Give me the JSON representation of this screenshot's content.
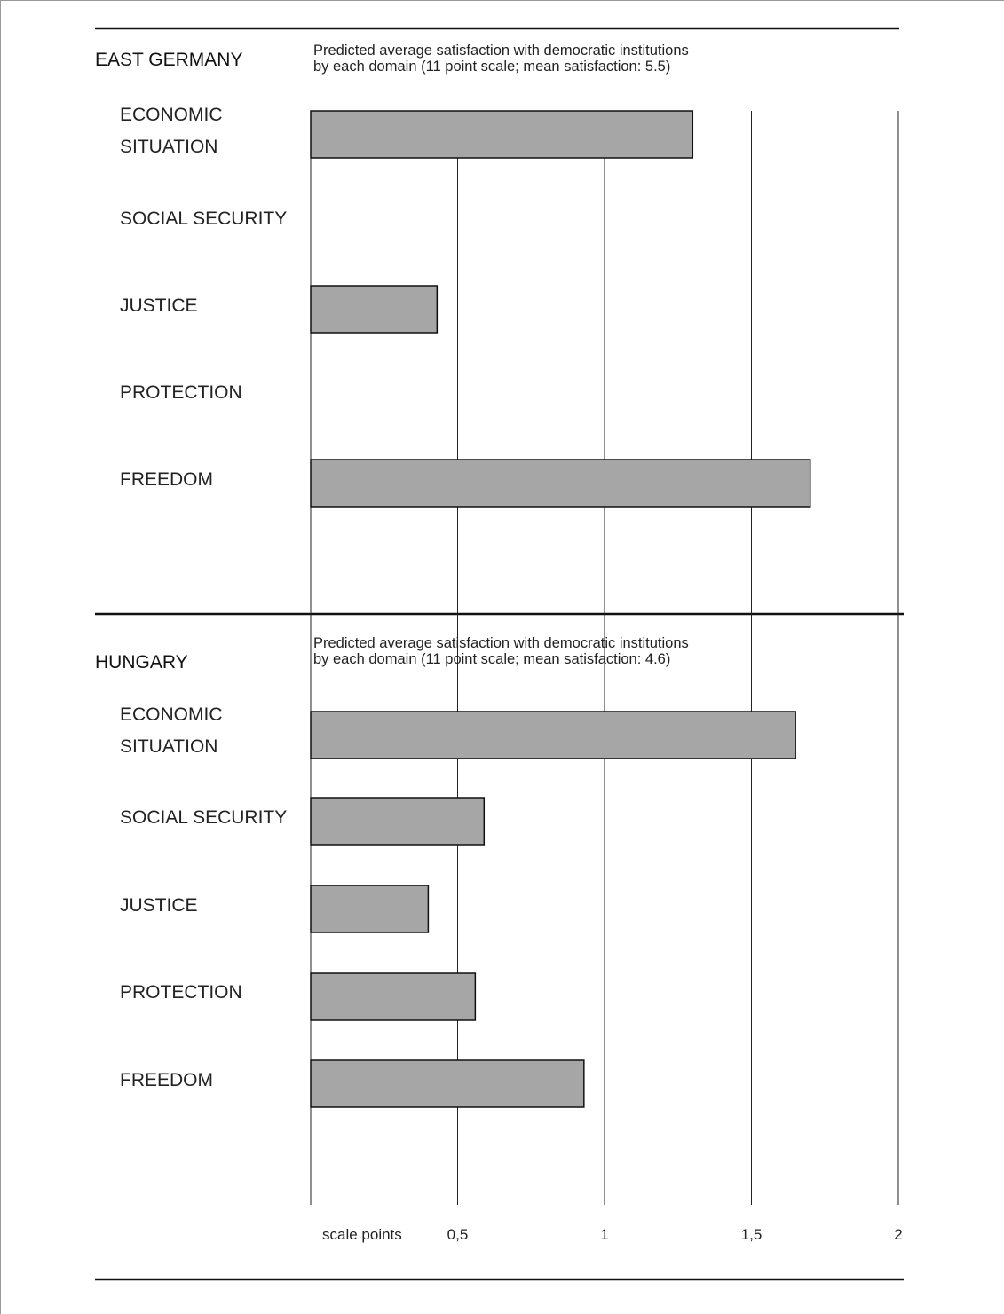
{
  "chart_data": [
    {
      "type": "bar",
      "orientation": "horizontal",
      "title": "EAST GERMANY",
      "subtitle": [
        "Predicted average satisfaction with democratic institutions",
        "by each domain (11 point scale; mean satisfaction: 5.5)"
      ],
      "categories": [
        "ECONOMIC\nSITUATION",
        "SOCIAL SECURITY",
        "JUSTICE",
        "PROTECTION",
        "FREEDOM"
      ],
      "values": [
        1.3,
        null,
        0.43,
        null,
        1.7
      ],
      "xlim": [
        0,
        2
      ],
      "grid": true,
      "bar_color": "#a6a6a6"
    },
    {
      "type": "bar",
      "orientation": "horizontal",
      "title": "HUNGARY",
      "subtitle": [
        "Predicted average satisfaction with democratic institutions",
        "by each domain (11 point scale; mean satisfaction: 4.6)"
      ],
      "categories": [
        "ECONOMIC\nSITUATION",
        "SOCIAL SECURITY",
        "JUSTICE",
        "PROTECTION",
        "FREEDOM"
      ],
      "values": [
        1.65,
        0.59,
        0.4,
        0.56,
        0.93
      ],
      "xlim": [
        0,
        2
      ],
      "grid": true,
      "bar_color": "#a6a6a6"
    }
  ],
  "axis": {
    "xlabel": "scale points",
    "ticks": [
      0.5,
      1,
      1.5,
      2
    ],
    "tick_labels": [
      "0,5",
      "1",
      "1,5",
      "2"
    ]
  }
}
